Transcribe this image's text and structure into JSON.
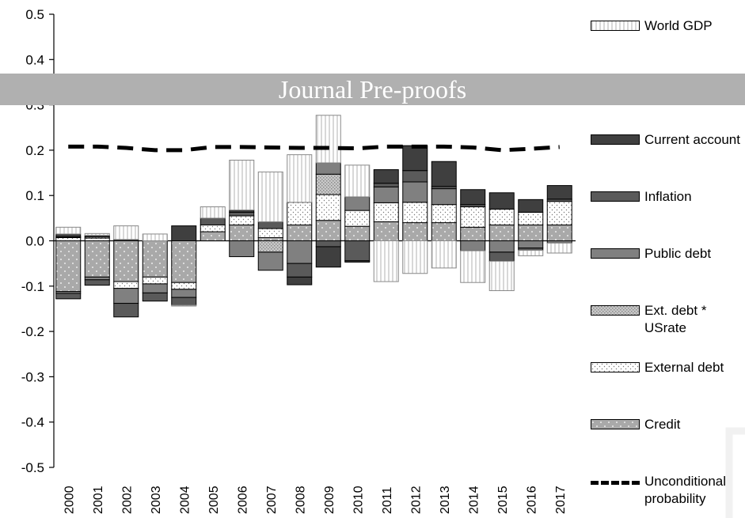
{
  "banner": {
    "text": "Journal Pre-proofs"
  },
  "chart_data": {
    "type": "bar",
    "stacked": true,
    "categories": [
      "2000",
      "2001",
      "2002",
      "2003",
      "2004",
      "2005",
      "2006",
      "2007",
      "2008",
      "2009",
      "2010",
      "2011",
      "2012",
      "2013",
      "2014",
      "2015",
      "2016",
      "2017"
    ],
    "ylim": [
      -0.5,
      0.5
    ],
    "yticks": [
      "0.5",
      "0.4",
      "0.3",
      "0.2",
      "0.1",
      "0.0",
      "-0.1",
      "-0.2",
      "-0.3",
      "-0.4",
      "-0.5"
    ],
    "title": "",
    "xlabel": "",
    "ylabel": "",
    "legend_position": "right",
    "series": [
      {
        "name": "World GDP",
        "key": "gdp",
        "values": [
          0.015,
          0.004,
          0.03,
          0.015,
          -0.002,
          0.025,
          0.11,
          0.11,
          0.105,
          0.105,
          0.07,
          -0.09,
          -0.072,
          -0.06,
          -0.07,
          -0.065,
          -0.012,
          -0.022
        ]
      },
      {
        "name": "Current account",
        "key": "ca",
        "values": [
          0.006,
          0.003,
          0.003,
          0.0,
          0.033,
          0.0,
          0.005,
          0.0,
          -0.017,
          -0.045,
          -0.003,
          0.03,
          0.055,
          0.055,
          0.033,
          0.036,
          0.028,
          0.03
        ]
      },
      {
        "name": "Inflation",
        "key": "infl",
        "values": [
          -0.012,
          -0.012,
          -0.03,
          -0.018,
          -0.017,
          0.015,
          0.008,
          0.015,
          -0.03,
          -0.013,
          -0.044,
          0.008,
          0.025,
          0.005,
          0.005,
          -0.02,
          -0.005,
          0.005
        ]
      },
      {
        "name": "Public debt",
        "key": "pub",
        "values": [
          -0.004,
          -0.006,
          -0.033,
          -0.02,
          -0.018,
          0.0,
          -0.035,
          -0.04,
          -0.05,
          0.025,
          0.03,
          0.035,
          0.045,
          0.035,
          -0.022,
          -0.025,
          -0.016,
          -0.005
        ]
      },
      {
        "name": "Ext. debt * USrate",
        "key": "ext_us",
        "values": [
          0.002,
          0.003,
          0.0,
          0.0,
          0.0,
          0.0,
          0.0,
          -0.025,
          0.0,
          0.045,
          0.0,
          0.0,
          0.0,
          0.0,
          0.0,
          0.0,
          0.0,
          0.0
        ]
      },
      {
        "name": "External debt",
        "key": "ext",
        "values": [
          0.007,
          0.006,
          -0.015,
          -0.015,
          -0.015,
          0.015,
          0.02,
          0.02,
          0.05,
          0.057,
          0.035,
          0.042,
          0.045,
          0.04,
          0.045,
          0.035,
          0.028,
          0.052
        ]
      },
      {
        "name": "Credit",
        "key": "credit",
        "values": [
          -0.112,
          -0.08,
          -0.09,
          -0.08,
          -0.092,
          0.02,
          0.035,
          0.007,
          0.035,
          0.045,
          0.032,
          0.042,
          0.04,
          0.04,
          0.03,
          0.035,
          0.035,
          0.035
        ]
      }
    ],
    "unconditional_probability": {
      "name": "Unconditional probability",
      "values": [
        0.208,
        0.208,
        0.205,
        0.2,
        0.2,
        0.207,
        0.207,
        0.206,
        0.205,
        0.205,
        0.204,
        0.208,
        0.208,
        0.208,
        0.206,
        0.2,
        0.203,
        0.207
      ]
    }
  },
  "legend": [
    {
      "label": "World GDP",
      "key": "gdp"
    },
    {
      "label": "Current account",
      "key": "ca"
    },
    {
      "label": "Inflation",
      "key": "infl"
    },
    {
      "label": "Public debt",
      "key": "pub"
    },
    {
      "label": "Ext. debt * USrate",
      "key": "ext_us"
    },
    {
      "label": "External debt",
      "key": "ext"
    },
    {
      "label": "Credit",
      "key": "credit"
    },
    {
      "label": "Unconditional probability",
      "key": "uncond"
    }
  ]
}
